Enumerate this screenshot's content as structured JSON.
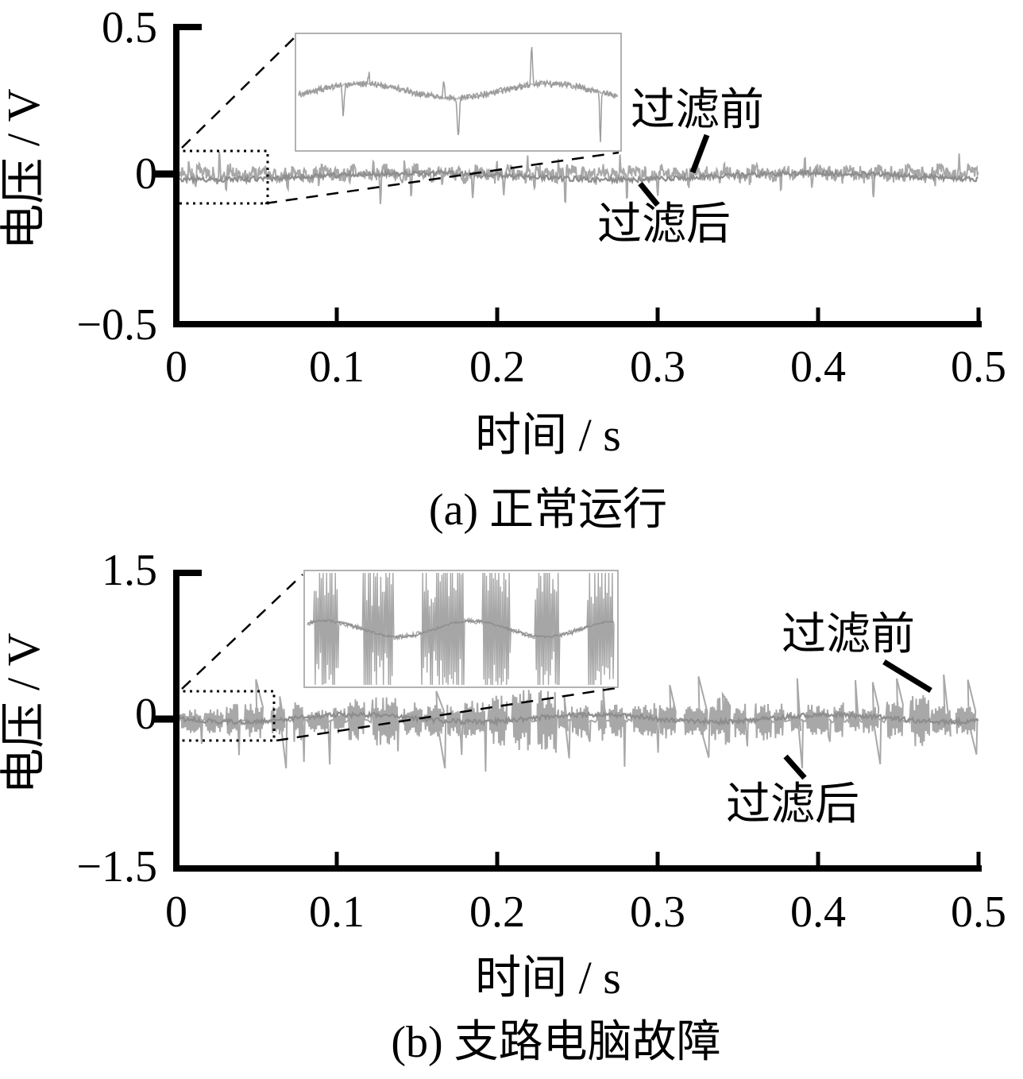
{
  "figure": {
    "background": "#ffffff",
    "axis_color": "#000000",
    "inset_border_color": "#999999"
  },
  "chart_data": [
    {
      "id": "a",
      "type": "line",
      "caption": "(a) 正常运行",
      "xlabel": "时间 / s",
      "ylabel": "电压 / V",
      "xlim": [
        0,
        0.5
      ],
      "ylim": [
        -0.5,
        0.5
      ],
      "x_ticks": [
        "0",
        "0.1",
        "0.2",
        "0.3",
        "0.4",
        "0.5"
      ],
      "y_ticks": [
        "0.5",
        "0",
        "−0.5"
      ],
      "grid": false,
      "legend": "none",
      "annotations": [
        {
          "label": "过滤前"
        },
        {
          "label": "过滤后"
        }
      ],
      "series": [
        {
          "name": "过滤前",
          "color": "#a8a8a8",
          "description": "raw voltage: periodic noisy band ~±0.04 V around ≈−0.01 V, period ≈0.019 s, regular negative spikes to ≈−0.10 V, occasional positive spikes to ≈+0.10 V"
        },
        {
          "name": "过滤后",
          "color": "#8d8d8d",
          "description": "filtered voltage: smooth trace ≈−0.01 V with ±0.015 V ripple"
        }
      ],
      "inset": {
        "source_region_s": [
          0,
          0.055
        ],
        "description": "magnified view of 0–0.055 s: low-amplitude noise with slow undulation, sparse up/down spikes"
      }
    },
    {
      "id": "b",
      "type": "line",
      "caption": "(b) 支路电脑故障",
      "xlabel": "时间 / s",
      "ylabel": "电压 / V",
      "xlim": [
        0,
        0.5
      ],
      "ylim": [
        -1.5,
        1.5
      ],
      "x_ticks": [
        "0",
        "0.1",
        "0.2",
        "0.3",
        "0.4",
        "0.5"
      ],
      "y_ticks": [
        "1.5",
        "0",
        "−1.5"
      ],
      "grid": false,
      "legend": "none",
      "annotations": [
        {
          "label": "过滤前"
        },
        {
          "label": "过滤后"
        }
      ],
      "series": [
        {
          "name": "过滤前",
          "color": "#a8a8a8",
          "description": "raw voltage: oscillation bursts ~±0.2 V around 0, frequent negative spikes to ≈−0.5 V, positive spikes to ≈+0.45 V mostly after 0.3 s"
        },
        {
          "name": "过滤后",
          "color": "#8d8d8d",
          "description": "filtered voltage: smooth trace near 0 V with ±0.03 V ripple"
        }
      ],
      "inset": {
        "source_region_s": [
          0,
          0.06
        ],
        "description": "magnified view of 0–0.06 s: dense clipped spike bursts over a wavy baseline"
      }
    }
  ]
}
